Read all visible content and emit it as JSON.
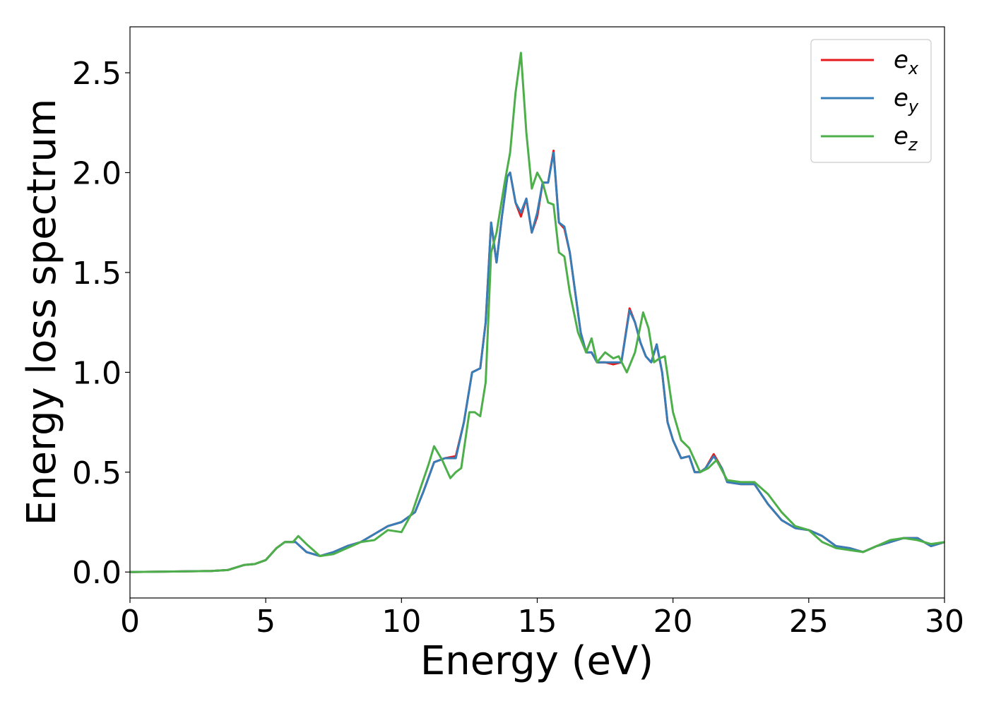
{
  "chart_data": {
    "type": "line",
    "title": "",
    "xlabel": "Energy (eV)",
    "ylabel": "Energy loss spectrum",
    "xlim": [
      0,
      30
    ],
    "ylim": [
      -0.13,
      2.73
    ],
    "xticks": [
      0,
      5,
      10,
      15,
      20,
      25,
      30
    ],
    "xtick_labels": [
      "0",
      "5",
      "10",
      "15",
      "20",
      "25",
      "30"
    ],
    "yticks": [
      0.0,
      0.5,
      1.0,
      1.5,
      2.0,
      2.5
    ],
    "ytick_labels": [
      "0.0",
      "0.5",
      "1.0",
      "1.5",
      "2.0",
      "2.5"
    ],
    "grid": false,
    "legend_position": "top-right",
    "series": [
      {
        "name": "e_x",
        "legend_base": "e",
        "legend_sub": "x",
        "color": "#e41a1c",
        "x": [
          0,
          3,
          3.6,
          4.2,
          4.6,
          5.0,
          5.4,
          5.7,
          6.1,
          6.5,
          7.0,
          7.5,
          8.0,
          8.5,
          9.0,
          9.5,
          10.0,
          10.5,
          10.8,
          11.2,
          11.6,
          12.0,
          12.3,
          12.6,
          12.9,
          13.1,
          13.3,
          13.5,
          13.7,
          13.9,
          14.0,
          14.2,
          14.4,
          14.6,
          14.8,
          15.0,
          15.2,
          15.4,
          15.6,
          15.8,
          16.0,
          16.2,
          16.4,
          16.6,
          16.8,
          17.0,
          17.2,
          17.5,
          17.8,
          18.1,
          18.4,
          18.6,
          18.8,
          19.0,
          19.2,
          19.4,
          19.6,
          19.8,
          20.0,
          20.3,
          20.6,
          20.8,
          21.0,
          21.2,
          21.5,
          21.8,
          22.0,
          22.5,
          23.0,
          23.5,
          24.0,
          24.5,
          25.0,
          25.5,
          26.0,
          26.5,
          27.0,
          27.5,
          28.0,
          28.5,
          29.0,
          29.5,
          30.0
        ],
        "y": [
          0.0,
          0.005,
          0.01,
          0.035,
          0.04,
          0.06,
          0.12,
          0.15,
          0.15,
          0.1,
          0.08,
          0.1,
          0.13,
          0.15,
          0.19,
          0.23,
          0.25,
          0.3,
          0.4,
          0.55,
          0.57,
          0.58,
          0.75,
          1.0,
          1.02,
          1.25,
          1.75,
          1.55,
          1.78,
          1.98,
          2.0,
          1.85,
          1.78,
          1.87,
          1.7,
          1.78,
          1.95,
          1.95,
          2.11,
          1.75,
          1.72,
          1.6,
          1.4,
          1.2,
          1.1,
          1.1,
          1.05,
          1.05,
          1.04,
          1.05,
          1.32,
          1.25,
          1.15,
          1.08,
          1.05,
          1.14,
          1.0,
          0.75,
          0.66,
          0.57,
          0.58,
          0.5,
          0.5,
          0.52,
          0.59,
          0.52,
          0.45,
          0.44,
          0.44,
          0.34,
          0.26,
          0.22,
          0.21,
          0.18,
          0.13,
          0.12,
          0.1,
          0.13,
          0.15,
          0.17,
          0.17,
          0.13,
          0.15
        ]
      },
      {
        "name": "e_y",
        "legend_base": "e",
        "legend_sub": "y",
        "color": "#377eb8",
        "x": [
          0,
          3,
          3.6,
          4.2,
          4.6,
          5.0,
          5.4,
          5.7,
          6.1,
          6.5,
          7.0,
          7.5,
          8.0,
          8.5,
          9.0,
          9.5,
          10.0,
          10.5,
          10.8,
          11.2,
          11.6,
          12.0,
          12.3,
          12.6,
          12.9,
          13.1,
          13.3,
          13.5,
          13.7,
          13.9,
          14.0,
          14.2,
          14.4,
          14.6,
          14.8,
          15.0,
          15.2,
          15.4,
          15.6,
          15.8,
          16.0,
          16.2,
          16.4,
          16.6,
          16.8,
          17.0,
          17.2,
          17.5,
          17.8,
          18.1,
          18.4,
          18.6,
          18.8,
          19.0,
          19.2,
          19.4,
          19.6,
          19.8,
          20.0,
          20.3,
          20.6,
          20.8,
          21.0,
          21.2,
          21.5,
          21.8,
          22.0,
          22.5,
          23.0,
          23.5,
          24.0,
          24.5,
          25.0,
          25.5,
          26.0,
          26.5,
          27.0,
          27.5,
          28.0,
          28.5,
          29.0,
          29.5,
          30.0
        ],
        "y": [
          0.0,
          0.005,
          0.01,
          0.035,
          0.04,
          0.06,
          0.12,
          0.15,
          0.15,
          0.1,
          0.08,
          0.1,
          0.13,
          0.15,
          0.19,
          0.23,
          0.25,
          0.3,
          0.4,
          0.55,
          0.57,
          0.57,
          0.75,
          1.0,
          1.02,
          1.25,
          1.75,
          1.55,
          1.78,
          1.98,
          2.0,
          1.85,
          1.8,
          1.87,
          1.7,
          1.8,
          1.95,
          1.95,
          2.1,
          1.75,
          1.73,
          1.6,
          1.4,
          1.2,
          1.1,
          1.1,
          1.05,
          1.05,
          1.05,
          1.05,
          1.31,
          1.25,
          1.15,
          1.08,
          1.05,
          1.14,
          1.0,
          0.75,
          0.66,
          0.57,
          0.58,
          0.5,
          0.5,
          0.52,
          0.58,
          0.52,
          0.45,
          0.44,
          0.44,
          0.34,
          0.26,
          0.22,
          0.21,
          0.18,
          0.13,
          0.12,
          0.1,
          0.13,
          0.15,
          0.17,
          0.17,
          0.13,
          0.15
        ]
      },
      {
        "name": "e_z",
        "legend_base": "e",
        "legend_sub": "z",
        "color": "#4daf4a",
        "x": [
          0,
          3,
          3.6,
          4.2,
          4.6,
          5.0,
          5.4,
          5.7,
          6.0,
          6.2,
          6.5,
          7.0,
          7.5,
          8.0,
          8.5,
          9.0,
          9.5,
          10.0,
          10.4,
          10.7,
          11.0,
          11.2,
          11.5,
          11.8,
          12.0,
          12.2,
          12.5,
          12.7,
          12.9,
          13.1,
          13.3,
          13.5,
          13.8,
          14.0,
          14.2,
          14.4,
          14.6,
          14.8,
          15.0,
          15.2,
          15.4,
          15.6,
          15.8,
          16.0,
          16.2,
          16.5,
          16.8,
          17.0,
          17.2,
          17.5,
          17.8,
          18.0,
          18.3,
          18.6,
          18.9,
          19.1,
          19.3,
          19.5,
          19.7,
          20.0,
          20.3,
          20.6,
          21.0,
          21.3,
          21.6,
          22.0,
          22.5,
          23.0,
          23.5,
          24.0,
          24.5,
          25.0,
          25.5,
          26.0,
          26.5,
          27.0,
          27.5,
          28.0,
          28.5,
          29.0,
          29.5,
          30.0
        ],
        "y": [
          0.0,
          0.005,
          0.01,
          0.035,
          0.04,
          0.06,
          0.12,
          0.15,
          0.15,
          0.18,
          0.14,
          0.08,
          0.09,
          0.12,
          0.15,
          0.16,
          0.21,
          0.2,
          0.3,
          0.42,
          0.54,
          0.63,
          0.56,
          0.47,
          0.5,
          0.52,
          0.8,
          0.8,
          0.78,
          0.95,
          1.6,
          1.7,
          1.95,
          2.1,
          2.4,
          2.6,
          2.2,
          1.92,
          2.0,
          1.95,
          1.85,
          1.84,
          1.6,
          1.58,
          1.4,
          1.2,
          1.1,
          1.17,
          1.05,
          1.1,
          1.07,
          1.08,
          1.0,
          1.1,
          1.3,
          1.22,
          1.05,
          1.07,
          1.08,
          0.8,
          0.66,
          0.62,
          0.5,
          0.52,
          0.56,
          0.46,
          0.45,
          0.45,
          0.39,
          0.3,
          0.23,
          0.21,
          0.15,
          0.12,
          0.11,
          0.1,
          0.13,
          0.16,
          0.17,
          0.16,
          0.14,
          0.15
        ]
      }
    ]
  }
}
